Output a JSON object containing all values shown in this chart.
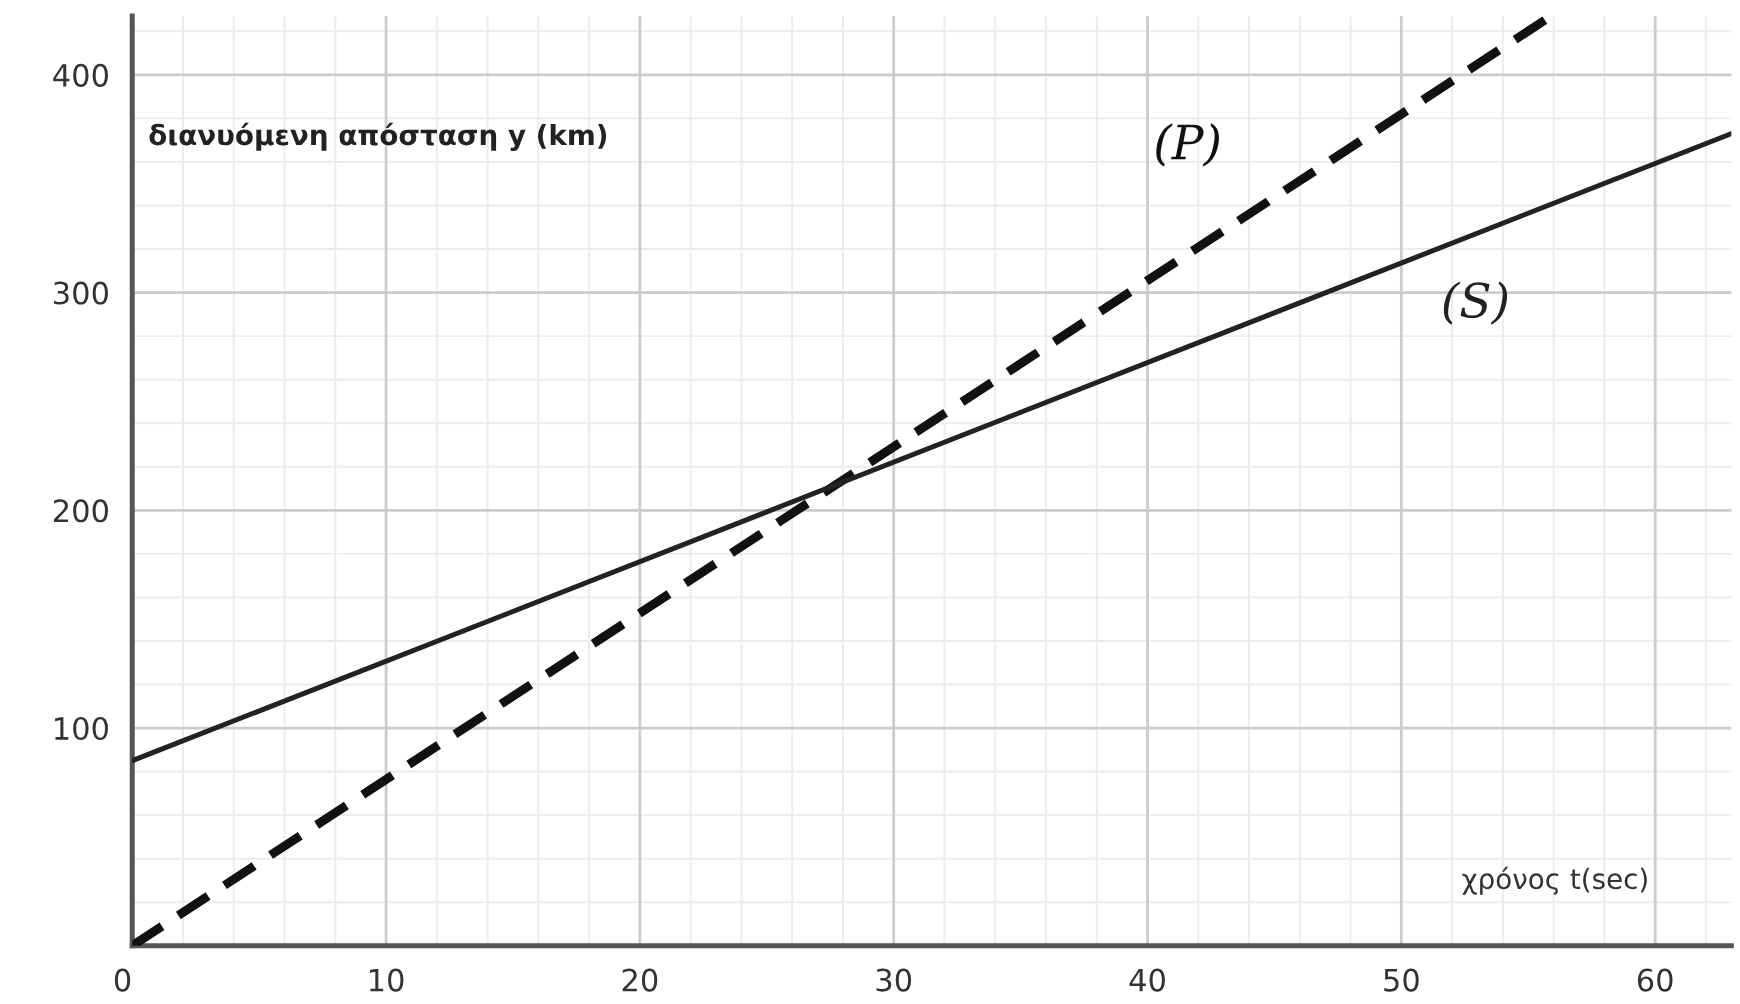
{
  "chart_data": {
    "type": "line",
    "xlabel": "χρόνος t(sec)",
    "ylabel": "διανυόμενη απόσταση y (km)",
    "series": [
      {
        "name": "(P)",
        "color": "#111111",
        "x": [
          0,
          55.9
        ],
        "values": [
          0,
          427
        ],
        "line_style": "dashed"
      },
      {
        "name": "(S)",
        "color": "#222222",
        "x": [
          0,
          63
        ],
        "values": [
          85,
          373
        ],
        "line_style": "solid"
      }
    ],
    "xlim": [
      0,
      63
    ],
    "ylim": [
      0,
      427
    ],
    "xticks": [
      {
        "value": 0,
        "label": "0"
      },
      10,
      20,
      30,
      40,
      50,
      60
    ],
    "yticks": [
      {
        "value": 0,
        "label": null
      },
      100,
      200,
      300,
      400
    ],
    "grid": true,
    "legend": false
  }
}
